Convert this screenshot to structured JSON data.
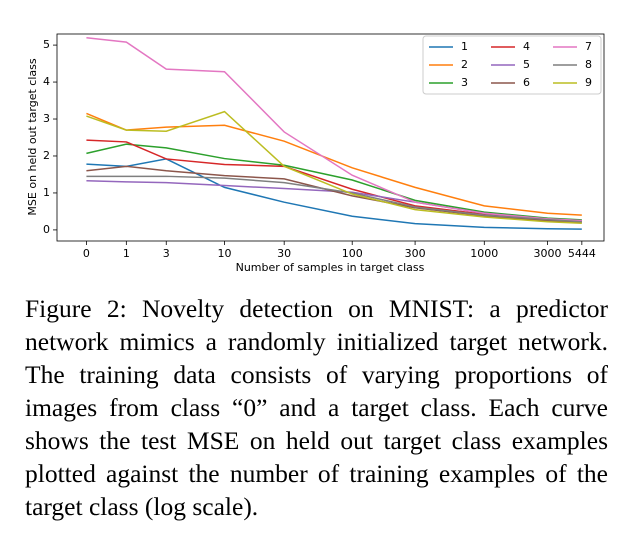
{
  "chart_data": {
    "type": "line",
    "x": [
      0,
      1,
      3,
      10,
      30,
      100,
      300,
      1000,
      3000,
      5444
    ],
    "xscale": "log1p",
    "xlim": [
      -0.4,
      8000
    ],
    "xticks": [
      0,
      1,
      3,
      10,
      30,
      100,
      300,
      1000,
      3000,
      5444
    ],
    "ylim": [
      -0.3,
      5.3
    ],
    "yticks": [
      0,
      1,
      2,
      3,
      4,
      5
    ],
    "xlabel": "Number of samples in target class",
    "ylabel": "MSE on held out target class",
    "legend": "upper right",
    "series": [
      {
        "name": "1",
        "color": "#1f77b4",
        "values": [
          1.78,
          1.72,
          1.92,
          1.15,
          0.75,
          0.37,
          0.17,
          0.07,
          0.03,
          0.02
        ]
      },
      {
        "name": "2",
        "color": "#ff7f0e",
        "values": [
          3.15,
          2.7,
          2.78,
          2.83,
          2.4,
          1.68,
          1.15,
          0.65,
          0.45,
          0.4
        ]
      },
      {
        "name": "3",
        "color": "#2ca02c",
        "values": [
          2.07,
          2.32,
          2.22,
          1.93,
          1.75,
          1.35,
          0.8,
          0.48,
          0.32,
          0.27
        ]
      },
      {
        "name": "4",
        "color": "#d62728",
        "values": [
          2.43,
          2.38,
          1.92,
          1.77,
          1.72,
          1.1,
          0.65,
          0.42,
          0.28,
          0.24
        ]
      },
      {
        "name": "5",
        "color": "#9467bd",
        "values": [
          1.33,
          1.3,
          1.28,
          1.2,
          1.12,
          1.02,
          0.75,
          0.45,
          0.3,
          0.25
        ]
      },
      {
        "name": "6",
        "color": "#8c564b",
        "values": [
          1.6,
          1.72,
          1.6,
          1.47,
          1.38,
          0.92,
          0.6,
          0.38,
          0.25,
          0.2
        ]
      },
      {
        "name": "7",
        "color": "#e377c2",
        "values": [
          5.2,
          5.08,
          4.35,
          4.28,
          2.65,
          1.48,
          0.75,
          0.45,
          0.3,
          0.25
        ]
      },
      {
        "name": "8",
        "color": "#7f7f7f",
        "values": [
          1.45,
          1.45,
          1.45,
          1.4,
          1.28,
          1.0,
          0.62,
          0.4,
          0.28,
          0.22
        ]
      },
      {
        "name": "9",
        "color": "#bcbd22",
        "values": [
          3.08,
          2.7,
          2.67,
          3.2,
          1.72,
          0.97,
          0.55,
          0.35,
          0.22,
          0.18
        ]
      }
    ]
  },
  "caption": "Figure 2: Novelty detection on MNIST: a predictor network mimics a randomly initialized target network. The training data consists of varying proportions of images from class “0” and a target class. Each curve shows the test MSE on held out target class examples plotted against the number of training examples of the target class (log scale)."
}
